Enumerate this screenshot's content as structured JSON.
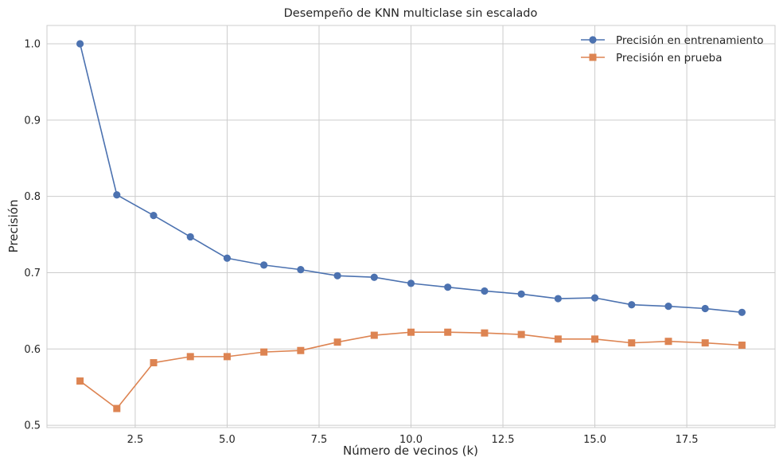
{
  "chart_data": {
    "type": "line",
    "title": "Desempeño de KNN multiclase sin escalado",
    "xlabel": "Número de vecinos (k)",
    "ylabel": "Precisión",
    "xlim": [
      0.1,
      19.9
    ],
    "ylim": [
      0.497,
      1.024
    ],
    "grid": true,
    "legend_position": "top-right",
    "x_ticks": [
      2.5,
      5.0,
      7.5,
      10.0,
      12.5,
      15.0,
      17.5
    ],
    "x_tick_labels": [
      "2.5",
      "5.0",
      "7.5",
      "10.0",
      "12.5",
      "15.0",
      "17.5"
    ],
    "y_ticks": [
      0.5,
      0.6,
      0.7,
      0.8,
      0.9,
      1.0
    ],
    "y_tick_labels": [
      "0.5",
      "0.6",
      "0.7",
      "0.8",
      "0.9",
      "1.0"
    ],
    "x": [
      1,
      2,
      3,
      4,
      5,
      6,
      7,
      8,
      9,
      10,
      11,
      12,
      13,
      14,
      15,
      16,
      17,
      18,
      19
    ],
    "series": [
      {
        "name": "Precisión en entrenamiento",
        "marker": "circle",
        "color": "#4c72b0",
        "values": [
          1.0,
          0.802,
          0.775,
          0.747,
          0.719,
          0.71,
          0.704,
          0.696,
          0.694,
          0.686,
          0.681,
          0.676,
          0.672,
          0.666,
          0.667,
          0.658,
          0.656,
          0.653,
          0.648
        ]
      },
      {
        "name": "Precisión en prueba",
        "marker": "square",
        "color": "#dd8452",
        "values": [
          0.558,
          0.522,
          0.582,
          0.59,
          0.59,
          0.596,
          0.598,
          0.609,
          0.618,
          0.622,
          0.622,
          0.621,
          0.619,
          0.613,
          0.613,
          0.608,
          0.61,
          0.608,
          0.605
        ]
      }
    ]
  }
}
